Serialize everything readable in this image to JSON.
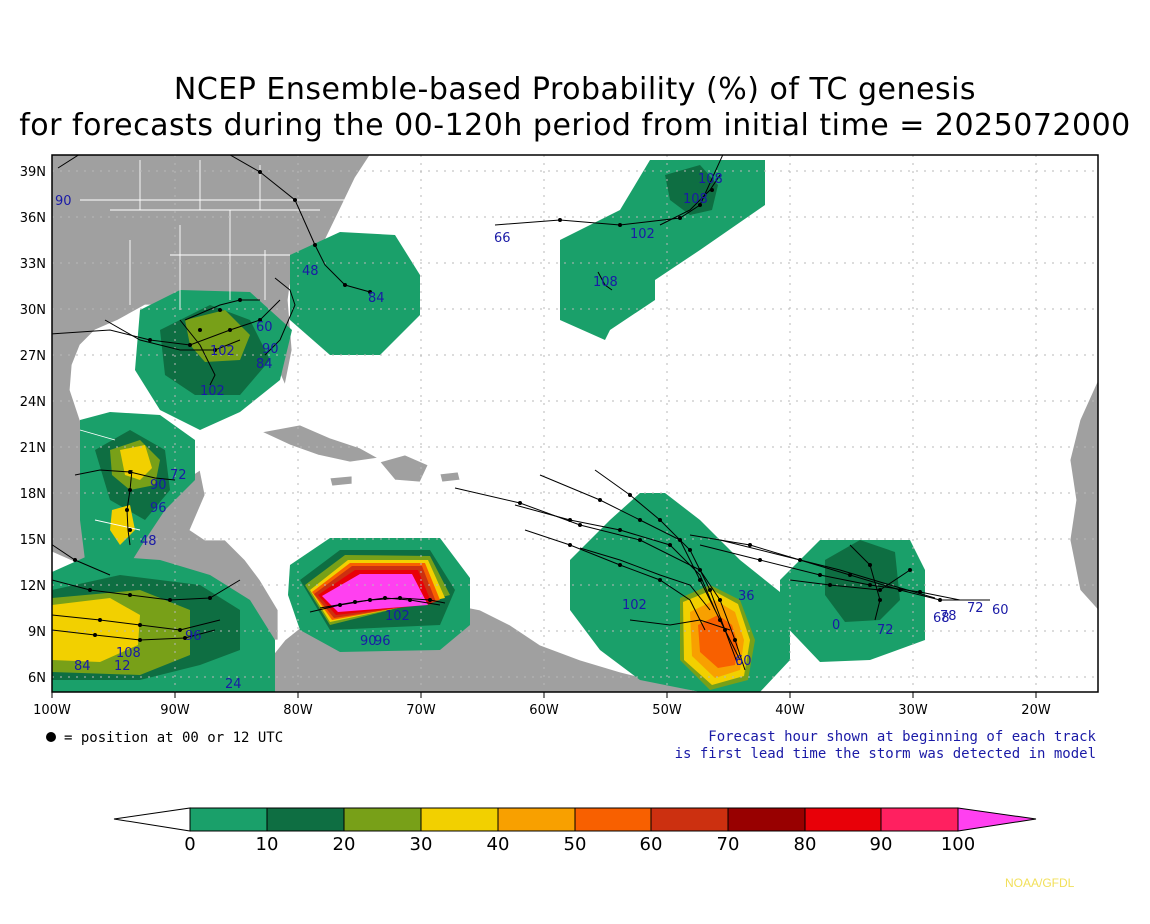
{
  "title": {
    "line1": "NCEP Ensemble-based Probability (%) of TC genesis",
    "line2": "for forecasts during the 00-120h period from initial time = 2025072000"
  },
  "map": {
    "lon_labels": [
      "100W",
      "90W",
      "80W",
      "70W",
      "60W",
      "50W",
      "40W",
      "30W",
      "20W"
    ],
    "lat_labels": [
      "39N",
      "36N",
      "33N",
      "30N",
      "27N",
      "24N",
      "21N",
      "18N",
      "15N",
      "12N",
      "9N",
      "6N"
    ],
    "legend_text": "= position at 00 or 12 UTC",
    "note_line1": "Forecast hour shown at beginning of each track",
    "note_line2": "is first lead time the storm was detected in model",
    "land_color": "#a0a0a0",
    "track_labels": [
      "90",
      "66",
      "108",
      "108",
      "102",
      "108",
      "48",
      "84",
      "102",
      "60",
      "90",
      "84",
      "102",
      "72",
      "90",
      "96",
      "48",
      "96",
      "84",
      "12",
      "108",
      "24",
      "102",
      "90",
      "96",
      "102",
      "36",
      "72",
      "60",
      "78",
      "68",
      "0",
      "72",
      "60"
    ]
  },
  "colorbar": {
    "labels": [
      "0",
      "10",
      "20",
      "30",
      "40",
      "50",
      "60",
      "70",
      "80",
      "90",
      "100"
    ],
    "colors": [
      "#ffffff",
      "#1aa06a",
      "#0e6e42",
      "#78a018",
      "#f2d000",
      "#f8a000",
      "#f86000",
      "#cc3010",
      "#980000",
      "#e80008",
      "#ff2060",
      "#ff40f0"
    ]
  },
  "credit": "NOAA/GFDL"
}
